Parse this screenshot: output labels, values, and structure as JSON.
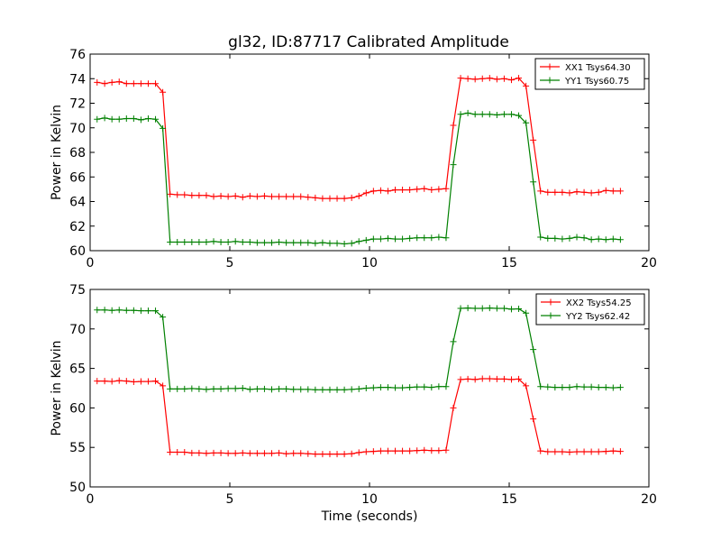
{
  "title": "gl32, ID:87717 Calibrated Amplitude",
  "chart_data": [
    {
      "type": "line",
      "ylabel": "Power in Kelvin",
      "xlabel": "",
      "xlim": [
        0,
        20
      ],
      "ylim": [
        60,
        76
      ],
      "xticks": [
        0,
        5,
        10,
        15,
        20
      ],
      "yticks": [
        60,
        62,
        64,
        66,
        68,
        70,
        72,
        74,
        76
      ],
      "grid": false,
      "legend_position": "top-right",
      "x": [
        0.25,
        0.52,
        0.78,
        1.04,
        1.3,
        1.56,
        1.82,
        2.08,
        2.34,
        2.6,
        2.86,
        3.12,
        3.38,
        3.64,
        3.9,
        4.16,
        4.42,
        4.68,
        4.94,
        5.2,
        5.46,
        5.72,
        5.98,
        6.24,
        6.5,
        6.76,
        7.02,
        7.28,
        7.54,
        7.8,
        8.06,
        8.32,
        8.58,
        8.84,
        9.1,
        9.36,
        9.62,
        9.88,
        10.14,
        10.4,
        10.66,
        10.92,
        11.18,
        11.44,
        11.7,
        11.96,
        12.22,
        12.48,
        12.74,
        13.0,
        13.26,
        13.52,
        13.78,
        14.04,
        14.3,
        14.56,
        14.82,
        15.08,
        15.34,
        15.6,
        15.86,
        16.12,
        16.38,
        16.64,
        16.9,
        17.16,
        17.42,
        17.68,
        17.94,
        18.2,
        18.46,
        18.72,
        18.98
      ],
      "series": [
        {
          "name": "XX1 Tsys64.30",
          "color": "#ff0000",
          "values": [
            73.7,
            73.6,
            73.7,
            73.75,
            73.6,
            73.6,
            73.6,
            73.6,
            73.6,
            72.9,
            64.6,
            64.55,
            64.55,
            64.5,
            64.5,
            64.5,
            64.4,
            64.45,
            64.4,
            64.45,
            64.35,
            64.45,
            64.4,
            64.45,
            64.4,
            64.4,
            64.4,
            64.4,
            64.4,
            64.35,
            64.3,
            64.25,
            64.25,
            64.25,
            64.25,
            64.3,
            64.45,
            64.7,
            64.85,
            64.9,
            64.85,
            64.95,
            64.95,
            64.95,
            65.0,
            65.05,
            64.95,
            65.0,
            65.05,
            70.2,
            74.05,
            74.0,
            73.95,
            74.0,
            74.05,
            73.95,
            74.0,
            73.9,
            74.05,
            73.4,
            69.0,
            64.85,
            64.75,
            64.75,
            64.75,
            64.7,
            64.8,
            64.75,
            64.7,
            64.75,
            64.9,
            64.85,
            64.85
          ]
        },
        {
          "name": "YY1 Tsys60.75",
          "color": "#008000",
          "values": [
            70.7,
            70.8,
            70.7,
            70.7,
            70.75,
            70.75,
            70.65,
            70.75,
            70.7,
            69.95,
            60.7,
            60.7,
            60.7,
            60.7,
            60.7,
            60.7,
            60.75,
            60.7,
            60.7,
            60.75,
            60.7,
            60.7,
            60.65,
            60.65,
            60.65,
            60.7,
            60.65,
            60.65,
            60.65,
            60.65,
            60.6,
            60.65,
            60.6,
            60.6,
            60.55,
            60.6,
            60.75,
            60.85,
            60.95,
            60.95,
            61.0,
            60.95,
            60.95,
            61.0,
            61.05,
            61.05,
            61.05,
            61.1,
            61.05,
            67.0,
            71.1,
            71.2,
            71.1,
            71.1,
            71.1,
            71.05,
            71.1,
            71.1,
            71.0,
            70.4,
            65.6,
            61.1,
            61.0,
            61.0,
            60.95,
            61.0,
            61.1,
            61.05,
            60.9,
            60.95,
            60.9,
            60.95,
            60.9
          ]
        }
      ]
    },
    {
      "type": "line",
      "ylabel": "Power in Kelvin",
      "xlabel": "Time (seconds)",
      "xlim": [
        0,
        20
      ],
      "ylim": [
        50,
        75
      ],
      "xticks": [
        0,
        5,
        10,
        15,
        20
      ],
      "yticks": [
        50,
        55,
        60,
        65,
        70,
        75
      ],
      "grid": false,
      "legend_position": "top-right",
      "x": [
        0.25,
        0.52,
        0.78,
        1.04,
        1.3,
        1.56,
        1.82,
        2.08,
        2.34,
        2.6,
        2.86,
        3.12,
        3.38,
        3.64,
        3.9,
        4.16,
        4.42,
        4.68,
        4.94,
        5.2,
        5.46,
        5.72,
        5.98,
        6.24,
        6.5,
        6.76,
        7.02,
        7.28,
        7.54,
        7.8,
        8.06,
        8.32,
        8.58,
        8.84,
        9.1,
        9.36,
        9.62,
        9.88,
        10.14,
        10.4,
        10.66,
        10.92,
        11.18,
        11.44,
        11.7,
        11.96,
        12.22,
        12.48,
        12.74,
        13.0,
        13.26,
        13.52,
        13.78,
        14.04,
        14.3,
        14.56,
        14.82,
        15.08,
        15.34,
        15.6,
        15.86,
        16.12,
        16.38,
        16.64,
        16.9,
        17.16,
        17.42,
        17.68,
        17.94,
        18.2,
        18.46,
        18.72,
        18.98
      ],
      "series": [
        {
          "name": "XX2 Tsys54.25",
          "color": "#ff0000",
          "values": [
            63.4,
            63.4,
            63.35,
            63.45,
            63.4,
            63.3,
            63.35,
            63.35,
            63.4,
            62.8,
            54.4,
            54.4,
            54.4,
            54.3,
            54.3,
            54.25,
            54.3,
            54.3,
            54.25,
            54.25,
            54.3,
            54.25,
            54.25,
            54.25,
            54.25,
            54.3,
            54.2,
            54.25,
            54.25,
            54.2,
            54.15,
            54.15,
            54.15,
            54.15,
            54.15,
            54.2,
            54.35,
            54.45,
            54.5,
            54.55,
            54.55,
            54.55,
            54.55,
            54.55,
            54.6,
            54.65,
            54.6,
            54.6,
            54.65,
            60.0,
            63.6,
            63.65,
            63.6,
            63.7,
            63.7,
            63.65,
            63.65,
            63.6,
            63.65,
            62.8,
            58.6,
            54.55,
            54.45,
            54.45,
            54.45,
            54.4,
            54.45,
            54.45,
            54.45,
            54.45,
            54.5,
            54.55,
            54.5
          ]
        },
        {
          "name": "YY2 Tsys62.42",
          "color": "#008000",
          "values": [
            72.4,
            72.4,
            72.35,
            72.4,
            72.35,
            72.35,
            72.3,
            72.3,
            72.3,
            71.5,
            62.4,
            62.4,
            62.4,
            62.45,
            62.4,
            62.35,
            62.4,
            62.4,
            62.45,
            62.45,
            62.5,
            62.35,
            62.4,
            62.4,
            62.35,
            62.4,
            62.4,
            62.35,
            62.35,
            62.35,
            62.3,
            62.3,
            62.3,
            62.3,
            62.3,
            62.35,
            62.4,
            62.5,
            62.55,
            62.6,
            62.6,
            62.55,
            62.55,
            62.6,
            62.65,
            62.65,
            62.6,
            62.7,
            62.7,
            68.4,
            72.6,
            72.65,
            72.6,
            72.6,
            72.65,
            72.6,
            72.6,
            72.5,
            72.55,
            72.0,
            67.4,
            62.7,
            62.65,
            62.6,
            62.6,
            62.6,
            62.7,
            62.65,
            62.65,
            62.6,
            62.6,
            62.55,
            62.6
          ]
        }
      ]
    }
  ]
}
